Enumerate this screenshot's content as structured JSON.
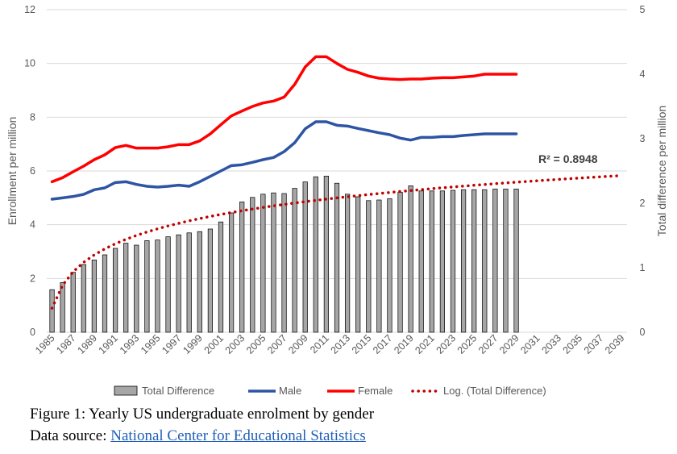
{
  "caption": {
    "figure": "Figure 1: Yearly US undergraduate enrolment by gender",
    "source_prefix": "Data source: ",
    "source_link": "National Center for Educational Statistics"
  },
  "colors": {
    "bar": "#a6a6a6",
    "bar_edge": "#000000",
    "male": "#2e55a3",
    "female": "#ff0000",
    "log": "#c00000",
    "grid": "#d9d9d9",
    "text": "#595959"
  },
  "chart_data": {
    "type": "bar+line",
    "title": "",
    "xlabel": "",
    "ylabel": "Enrollment per million",
    "y2label": "Total difference per million",
    "ylim": [
      0,
      12
    ],
    "y2lim": [
      0,
      5
    ],
    "yticks": [
      0,
      2,
      4,
      6,
      8,
      10,
      12
    ],
    "y2ticks": [
      0,
      1,
      2,
      3,
      4,
      5
    ],
    "x_tick_labels": [
      "1985",
      "1987",
      "1989",
      "1991",
      "1993",
      "1995",
      "1997",
      "1999",
      "2001",
      "2003",
      "2005",
      "2007",
      "2009",
      "2011",
      "2013",
      "2015",
      "2017",
      "2019",
      "2021",
      "2023",
      "2025",
      "2027",
      "2029",
      "2031",
      "2033",
      "2035",
      "2037",
      "2039"
    ],
    "grid": "horizontal",
    "legend_position": "bottom",
    "years": [
      1985,
      1986,
      1987,
      1988,
      1989,
      1990,
      1991,
      1992,
      1993,
      1994,
      1995,
      1996,
      1997,
      1998,
      1999,
      2000,
      2001,
      2002,
      2003,
      2004,
      2005,
      2006,
      2007,
      2008,
      2009,
      2010,
      2011,
      2012,
      2013,
      2014,
      2015,
      2016,
      2017,
      2018,
      2019,
      2020,
      2021,
      2022,
      2023,
      2024,
      2025,
      2026,
      2027,
      2028,
      2029
    ],
    "series": [
      {
        "name": "Total Difference",
        "type": "bar",
        "axis": "secondary",
        "values": [
          0.66,
          0.77,
          0.93,
          1.05,
          1.12,
          1.2,
          1.3,
          1.38,
          1.35,
          1.42,
          1.43,
          1.48,
          1.51,
          1.54,
          1.56,
          1.6,
          1.71,
          1.85,
          2.02,
          2.09,
          2.14,
          2.16,
          2.15,
          2.23,
          2.33,
          2.41,
          2.42,
          2.31,
          2.14,
          2.1,
          2.04,
          2.05,
          2.07,
          2.17,
          2.27,
          2.19,
          2.19,
          2.19,
          2.2,
          2.21,
          2.21,
          2.21,
          2.22,
          2.22,
          2.22
        ]
      },
      {
        "name": "Male",
        "type": "line",
        "axis": "primary",
        "values": [
          4.95,
          5.0,
          5.05,
          5.13,
          5.3,
          5.37,
          5.57,
          5.6,
          5.5,
          5.43,
          5.4,
          5.43,
          5.47,
          5.43,
          5.6,
          5.8,
          6.0,
          6.2,
          6.23,
          6.32,
          6.42,
          6.5,
          6.72,
          7.05,
          7.57,
          7.83,
          7.83,
          7.7,
          7.67,
          7.58,
          7.5,
          7.42,
          7.35,
          7.22,
          7.15,
          7.25,
          7.25,
          7.28,
          7.28,
          7.32,
          7.35,
          7.38,
          7.38,
          7.38,
          7.38
        ]
      },
      {
        "name": "Female",
        "type": "line",
        "axis": "primary",
        "values": [
          5.6,
          5.75,
          5.97,
          6.18,
          6.42,
          6.6,
          6.87,
          6.95,
          6.85,
          6.85,
          6.85,
          6.9,
          6.98,
          6.98,
          7.12,
          7.38,
          7.72,
          8.05,
          8.23,
          8.4,
          8.53,
          8.6,
          8.75,
          9.22,
          9.87,
          10.25,
          10.25,
          10.0,
          9.78,
          9.67,
          9.53,
          9.45,
          9.42,
          9.4,
          9.42,
          9.42,
          9.45,
          9.47,
          9.47,
          9.5,
          9.53,
          9.6,
          9.6,
          9.6,
          9.6
        ]
      },
      {
        "name": "Log. (Total Difference)",
        "type": "trendline-log",
        "axis": "secondary",
        "based_on": "Total Difference",
        "extends_to": 2039
      }
    ],
    "annotations": [
      {
        "text": "R² = 0.8948"
      }
    ]
  }
}
